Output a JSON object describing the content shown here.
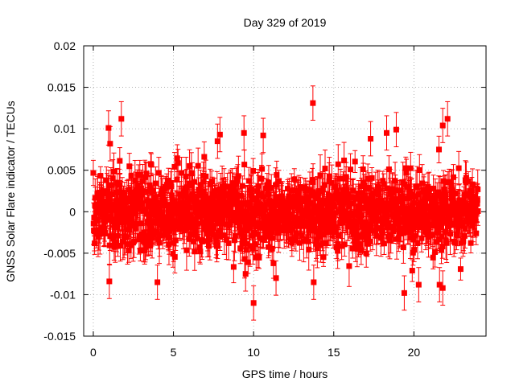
{
  "chart_data": {
    "type": "scatter",
    "title": "Day 329 of 2019",
    "xlabel": "GPS time / hours",
    "ylabel": "GNSS Solar Flare indicator / TECUs",
    "xlim": [
      -0.6,
      24.5
    ],
    "ylim": [
      -0.015,
      0.02
    ],
    "grid": true,
    "legend": "none",
    "x_ticks": [
      {
        "value": 0,
        "label": "0"
      },
      {
        "value": 5,
        "label": "5"
      },
      {
        "value": 10,
        "label": "10"
      },
      {
        "value": 15,
        "label": "15"
      },
      {
        "value": 20,
        "label": "20"
      }
    ],
    "y_ticks": [
      {
        "value": -0.015,
        "label": "-0.015"
      },
      {
        "value": -0.01,
        "label": "-0.01"
      },
      {
        "value": -0.005,
        "label": "-0.005"
      },
      {
        "value": 0,
        "label": "0"
      },
      {
        "value": 0.005,
        "label": "0.005"
      },
      {
        "value": 0.01,
        "label": "0.01"
      },
      {
        "value": 0.015,
        "label": "0.015"
      },
      {
        "value": 0.02,
        "label": "0.02"
      }
    ],
    "series": [
      {
        "name": "solar flare indicator",
        "color": "#ff0000",
        "marker": "square",
        "errorbars": true,
        "x_start": 0.0,
        "x_end": 24.0,
        "point_count": 1440,
        "spread_sigma": 0.0022,
        "typical_error": 0.0018,
        "highlighted_points": [
          {
            "x": 0.95,
            "y": 0.0101
          },
          {
            "x": 1.05,
            "y": 0.0082
          },
          {
            "x": 1.75,
            "y": 0.0112
          },
          {
            "x": 7.75,
            "y": 0.0085
          },
          {
            "x": 7.9,
            "y": 0.0093
          },
          {
            "x": 9.4,
            "y": 0.0095
          },
          {
            "x": 10.6,
            "y": 0.0092
          },
          {
            "x": 13.7,
            "y": 0.0131
          },
          {
            "x": 17.3,
            "y": 0.0088
          },
          {
            "x": 18.3,
            "y": 0.0095
          },
          {
            "x": 18.9,
            "y": 0.0099
          },
          {
            "x": 21.8,
            "y": 0.0104
          },
          {
            "x": 22.1,
            "y": 0.0112
          },
          {
            "x": 1.0,
            "y": -0.0084
          },
          {
            "x": 4.0,
            "y": -0.0085
          },
          {
            "x": 9.5,
            "y": -0.0075
          },
          {
            "x": 10.0,
            "y": -0.011
          },
          {
            "x": 11.4,
            "y": -0.008
          },
          {
            "x": 13.75,
            "y": -0.0085
          },
          {
            "x": 19.4,
            "y": -0.0098
          },
          {
            "x": 20.3,
            "y": -0.0088
          },
          {
            "x": 21.6,
            "y": -0.0088
          },
          {
            "x": 21.8,
            "y": -0.0092
          }
        ]
      }
    ]
  }
}
